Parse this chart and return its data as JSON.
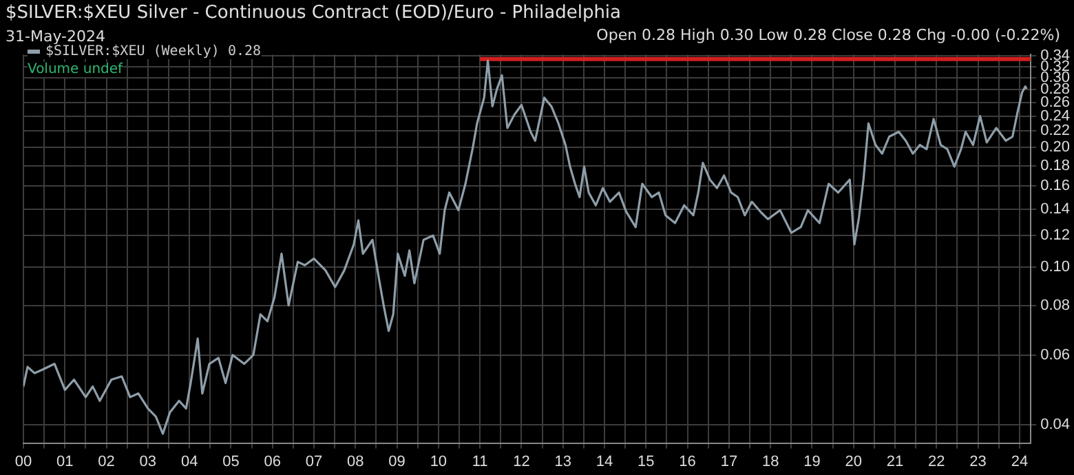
{
  "chart_data": {
    "type": "line",
    "title": "$SILVER:$XEU Silver - Continuous Contract (EOD)/Euro - Philadelphia",
    "subtitle": "31-May-2024",
    "annotations": [
      "Open 0.28 High 0.30 Low 0.28 Close 0.28 Chg -0.00 (-0.22%)",
      "Volume undef"
    ],
    "log": "y",
    "grid": true,
    "legend": "top left",
    "marker": "none",
    "line_style": "solid",
    "xlim": [
      2000,
      2024.27
    ],
    "ylim": [
      0.036,
      0.343
    ],
    "xticks": [
      {
        "value": 2000,
        "label": "00"
      },
      {
        "value": 2000.5,
        "label": null
      },
      {
        "value": 2001,
        "label": "01"
      },
      {
        "value": 2001.5,
        "label": null
      },
      {
        "value": 2002,
        "label": "02"
      },
      {
        "value": 2002.5,
        "label": null
      },
      {
        "value": 2003,
        "label": "03"
      },
      {
        "value": 2003.5,
        "label": null
      },
      {
        "value": 2004,
        "label": "04"
      },
      {
        "value": 2004.5,
        "label": null
      },
      {
        "value": 2005,
        "label": "05"
      },
      {
        "value": 2005.5,
        "label": null
      },
      {
        "value": 2006,
        "label": "06"
      },
      {
        "value": 2006.5,
        "label": null
      },
      {
        "value": 2007,
        "label": "07"
      },
      {
        "value": 2007.5,
        "label": null
      },
      {
        "value": 2008,
        "label": "08"
      },
      {
        "value": 2008.5,
        "label": null
      },
      {
        "value": 2009,
        "label": "09"
      },
      {
        "value": 2009.5,
        "label": null
      },
      {
        "value": 2010,
        "label": "10"
      },
      {
        "value": 2010.5,
        "label": null
      },
      {
        "value": 2011,
        "label": "11"
      },
      {
        "value": 2011.5,
        "label": null
      },
      {
        "value": 2012,
        "label": "12"
      },
      {
        "value": 2012.5,
        "label": null
      },
      {
        "value": 2013,
        "label": "13"
      },
      {
        "value": 2013.5,
        "label": null
      },
      {
        "value": 2014,
        "label": "14"
      },
      {
        "value": 2014.5,
        "label": null
      },
      {
        "value": 2015,
        "label": "15"
      },
      {
        "value": 2015.5,
        "label": null
      },
      {
        "value": 2016,
        "label": "16"
      },
      {
        "value": 2016.5,
        "label": null
      },
      {
        "value": 2017,
        "label": "17"
      },
      {
        "value": 2017.5,
        "label": null
      },
      {
        "value": 2018,
        "label": "18"
      },
      {
        "value": 2018.5,
        "label": null
      },
      {
        "value": 2019,
        "label": "19"
      },
      {
        "value": 2019.5,
        "label": null
      },
      {
        "value": 2020,
        "label": "20"
      },
      {
        "value": 2020.5,
        "label": null
      },
      {
        "value": 2021,
        "label": "21"
      },
      {
        "value": 2021.5,
        "label": null
      },
      {
        "value": 2022,
        "label": "22"
      },
      {
        "value": 2022.5,
        "label": null
      },
      {
        "value": 2023,
        "label": "23"
      },
      {
        "value": 2023.5,
        "label": null
      },
      {
        "value": 2024,
        "label": "24"
      }
    ],
    "yticks": [
      {
        "value": 0.04,
        "label": "0.04"
      },
      {
        "value": 0.06,
        "label": "0.06"
      },
      {
        "value": 0.08,
        "label": "0.08"
      },
      {
        "value": 0.1,
        "label": "0.10"
      },
      {
        "value": 0.12,
        "label": "0.12"
      },
      {
        "value": 0.14,
        "label": "0.14"
      },
      {
        "value": 0.16,
        "label": "0.16"
      },
      {
        "value": 0.18,
        "label": "0.18"
      },
      {
        "value": 0.2,
        "label": "0.20"
      },
      {
        "value": 0.22,
        "label": "0.22"
      },
      {
        "value": 0.24,
        "label": "0.24"
      },
      {
        "value": 0.26,
        "label": "0.26"
      },
      {
        "value": 0.28,
        "label": "0.28"
      },
      {
        "value": 0.3,
        "label": "0.30"
      },
      {
        "value": 0.32,
        "label": "0.32"
      },
      {
        "value": 0.34,
        "label": "0.34"
      }
    ],
    "series": [
      {
        "name": "$SILVER:$XEU (Weekly) 0.28",
        "color": "#8e9ea9",
        "x": [
          2000.0,
          2000.1,
          2000.27,
          2000.44,
          2000.75,
          2001.0,
          2001.22,
          2001.5,
          2001.67,
          2001.84,
          2002.12,
          2002.37,
          2002.57,
          2002.77,
          2003.0,
          2003.19,
          2003.36,
          2003.53,
          2003.75,
          2003.92,
          2004.03,
          2004.2,
          2004.31,
          2004.48,
          2004.7,
          2004.87,
          2005.04,
          2005.32,
          2005.54,
          2005.71,
          2005.88,
          2006.05,
          2006.22,
          2006.39,
          2006.61,
          2006.78,
          2007.0,
          2007.28,
          2007.51,
          2007.73,
          2007.96,
          2008.07,
          2008.18,
          2008.41,
          2008.57,
          2008.68,
          2008.8,
          2008.91,
          2009.02,
          2009.19,
          2009.3,
          2009.42,
          2009.64,
          2009.87,
          2010.03,
          2010.15,
          2010.26,
          2010.48,
          2010.65,
          2010.82,
          2010.93,
          2011.1,
          2011.19,
          2011.3,
          2011.41,
          2011.53,
          2011.66,
          2011.83,
          2012.0,
          2012.22,
          2012.33,
          2012.55,
          2012.72,
          2012.89,
          2013.06,
          2013.17,
          2013.29,
          2013.4,
          2013.51,
          2013.62,
          2013.79,
          2013.96,
          2014.13,
          2014.35,
          2014.52,
          2014.75,
          2014.91,
          2015.14,
          2015.31,
          2015.47,
          2015.7,
          2015.92,
          2016.14,
          2016.26,
          2016.37,
          2016.54,
          2016.71,
          2016.88,
          2017.05,
          2017.21,
          2017.38,
          2017.55,
          2017.78,
          2017.94,
          2018.23,
          2018.5,
          2018.73,
          2018.9,
          2019.18,
          2019.4,
          2019.63,
          2019.91,
          2020.02,
          2020.13,
          2020.24,
          2020.36,
          2020.53,
          2020.69,
          2020.86,
          2021.09,
          2021.26,
          2021.43,
          2021.6,
          2021.76,
          2021.93,
          2022.1,
          2022.26,
          2022.43,
          2022.59,
          2022.7,
          2022.88,
          2023.05,
          2023.21,
          2023.44,
          2023.67,
          2023.83,
          2023.95,
          2024.06,
          2024.14,
          2024.17
        ],
        "values": [
          0.05,
          0.056,
          0.054,
          0.055,
          0.057,
          0.049,
          0.052,
          0.047,
          0.05,
          0.046,
          0.052,
          0.053,
          0.047,
          0.048,
          0.044,
          0.042,
          0.038,
          0.043,
          0.046,
          0.044,
          0.051,
          0.066,
          0.048,
          0.057,
          0.059,
          0.051,
          0.06,
          0.057,
          0.06,
          0.076,
          0.073,
          0.084,
          0.108,
          0.08,
          0.103,
          0.101,
          0.105,
          0.098,
          0.089,
          0.098,
          0.114,
          0.131,
          0.108,
          0.117,
          0.093,
          0.08,
          0.069,
          0.076,
          0.108,
          0.095,
          0.11,
          0.091,
          0.117,
          0.12,
          0.108,
          0.139,
          0.154,
          0.139,
          0.162,
          0.198,
          0.23,
          0.267,
          0.331,
          0.254,
          0.281,
          0.304,
          0.224,
          0.242,
          0.256,
          0.219,
          0.208,
          0.267,
          0.254,
          0.23,
          0.203,
          0.179,
          0.162,
          0.15,
          0.179,
          0.154,
          0.143,
          0.158,
          0.146,
          0.154,
          0.138,
          0.126,
          0.162,
          0.15,
          0.154,
          0.135,
          0.129,
          0.143,
          0.135,
          0.154,
          0.183,
          0.166,
          0.158,
          0.17,
          0.154,
          0.15,
          0.135,
          0.146,
          0.137,
          0.132,
          0.139,
          0.122,
          0.126,
          0.139,
          0.129,
          0.162,
          0.154,
          0.166,
          0.114,
          0.133,
          0.166,
          0.23,
          0.203,
          0.193,
          0.213,
          0.219,
          0.208,
          0.193,
          0.203,
          0.198,
          0.236,
          0.203,
          0.198,
          0.179,
          0.198,
          0.219,
          0.203,
          0.24,
          0.206,
          0.224,
          0.208,
          0.213,
          0.245,
          0.275,
          0.285,
          0.281
        ]
      },
      {
        "color": "#d21f1f",
        "x": [
          2011.0,
          2024.27
        ],
        "values": [
          0.334,
          0.334
        ]
      }
    ]
  }
}
